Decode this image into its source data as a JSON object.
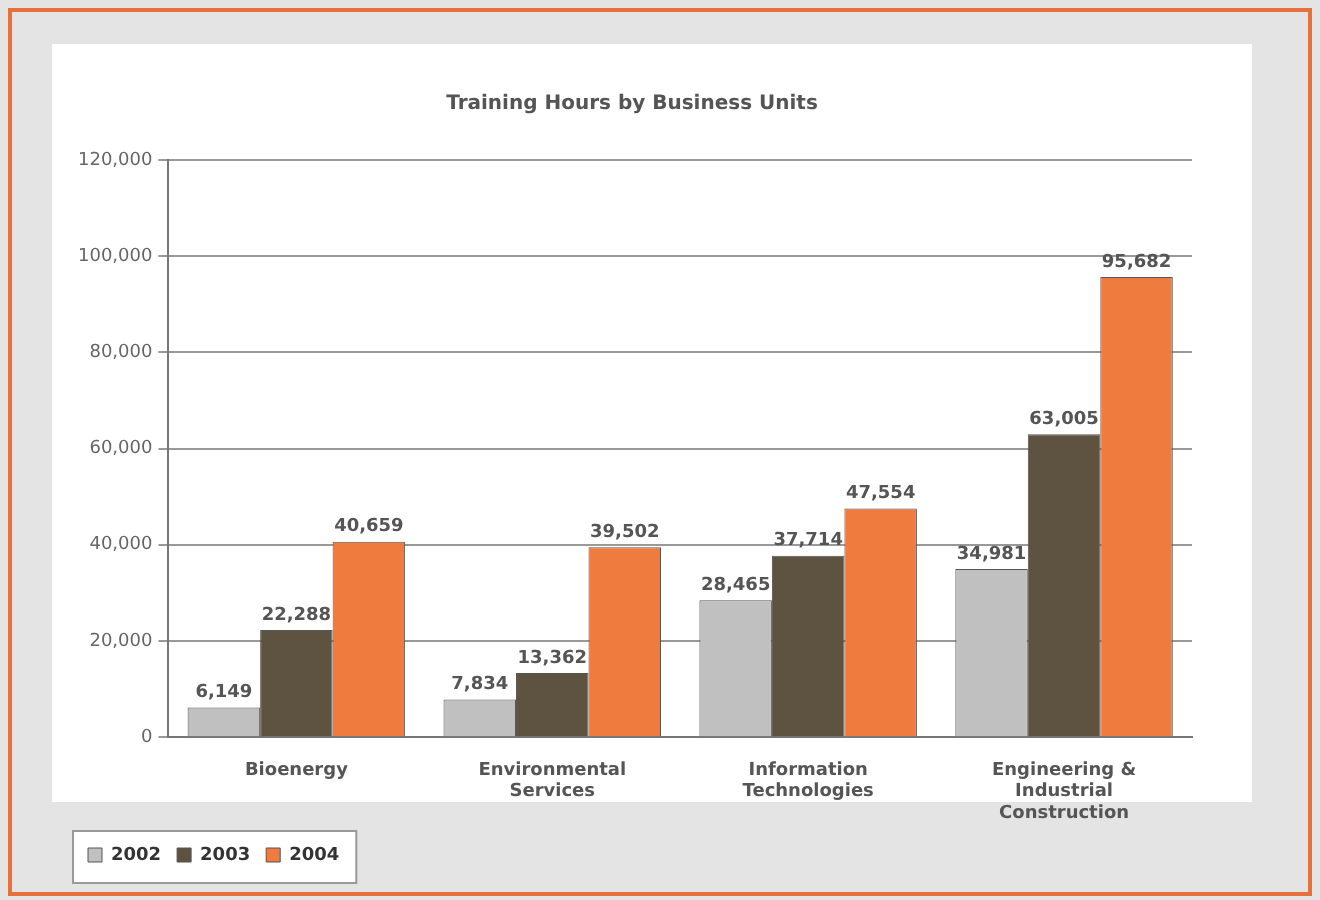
{
  "chart_data": {
    "type": "bar",
    "title": "Training Hours by Business Units",
    "categories": [
      "Bioenergy",
      "Environmental Services",
      "Information Technologies",
      "Engineering & Industrial Construction"
    ],
    "series": [
      {
        "name": "2002",
        "color": "#c0c0c0",
        "values": [
          6149,
          7834,
          28465,
          34981
        ],
        "value_labels": [
          "6,149",
          "7,834",
          "28,465",
          "34,981"
        ]
      },
      {
        "name": "2003",
        "color": "#5e5340",
        "values": [
          22288,
          13362,
          37714,
          63005
        ],
        "value_labels": [
          "22,288",
          "13,362",
          "37,714",
          "63,005"
        ]
      },
      {
        "name": "2004",
        "color": "#f07b3f",
        "values": [
          40659,
          39502,
          47554,
          95682
        ],
        "value_labels": [
          "40,659",
          "39,502",
          "47,554",
          "95,682"
        ]
      }
    ],
    "ylim": [
      0,
      120000
    ],
    "yticks": [
      0,
      {
        "value": 20000,
        "label": "20,000"
      },
      {
        "value": 40000,
        "label": "40,000"
      },
      {
        "value": 60000,
        "label": "60,000"
      },
      {
        "value": 80000,
        "label": "80,000"
      },
      {
        "value": 100000,
        "label": "100,000"
      },
      {
        "value": 120000,
        "label": "120,000"
      }
    ],
    "grid": "y",
    "legend": "bottom left"
  }
}
